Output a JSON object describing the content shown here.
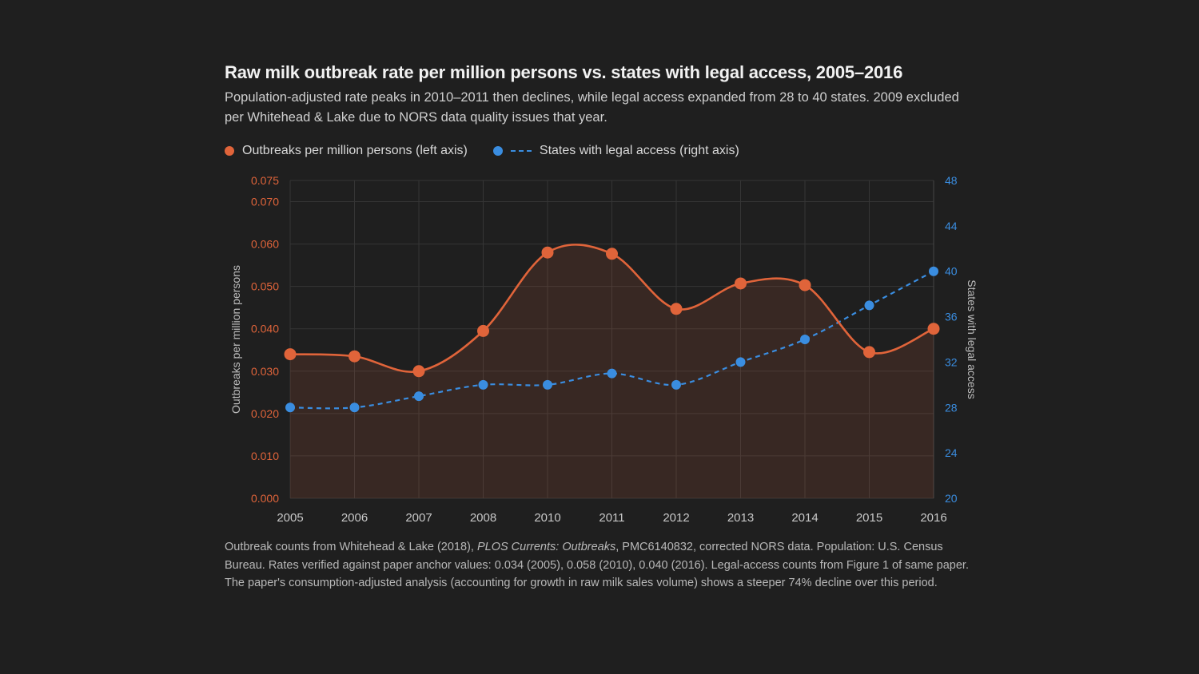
{
  "colors": {
    "outbreaks": "#e0643a",
    "states": "#3a8de0",
    "background": "#1f1f1f"
  },
  "title": "Raw milk outbreak rate per million persons vs. states with legal access, 2005–2016",
  "subtitle": "Population-adjusted rate peaks in 2010–2011 then declines, while legal access expanded from 28 to 40 states. 2009 excluded per Whitehead & Lake due to NORS data quality issues that year.",
  "note": {
    "part1": "Outbreak counts from Whitehead & Lake (2018), ",
    "italic": "PLOS Currents: Outbreaks",
    "part2": ", PMC6140832, corrected NORS data. Population: U.S. Census Bureau. Rates verified against paper anchor values: 0.034 (2005), 0.058 (2010), 0.040 (2016). Legal-access counts from Figure 1 of same paper. The paper's consumption-adjusted analysis (accounting for growth in raw milk sales volume) shows a steeper 74% decline over this period."
  },
  "chart_data": {
    "type": "line",
    "categories": [
      "2005",
      "2006",
      "2007",
      "2008",
      "2010",
      "2011",
      "2012",
      "2013",
      "2014",
      "2015",
      "2016"
    ],
    "series": [
      {
        "name": "Outbreaks per million persons (left axis)",
        "axis": "left",
        "style": "solid-area",
        "values": [
          0.034,
          0.0335,
          0.03,
          0.0395,
          0.058,
          0.0577,
          0.0447,
          0.0507,
          0.0503,
          0.0345,
          0.04
        ]
      },
      {
        "name": "States with legal access (right axis)",
        "axis": "right",
        "style": "dashed",
        "values": [
          28,
          28,
          29,
          30,
          30,
          31,
          30,
          32,
          34,
          37,
          40
        ]
      }
    ],
    "ylabel": "Outbreaks per million persons",
    "y2label": "States with legal access",
    "ylim": [
      0,
      0.075
    ],
    "y2lim": [
      20,
      48
    ],
    "yticks": [
      "0.000",
      "0.010",
      "0.020",
      "0.030",
      "0.040",
      "0.050",
      "0.060",
      "0.070",
      "0.075"
    ],
    "y2ticks": [
      "20",
      "24",
      "28",
      "32",
      "36",
      "40",
      "44",
      "48"
    ],
    "grid": true,
    "legend": "top-left"
  }
}
